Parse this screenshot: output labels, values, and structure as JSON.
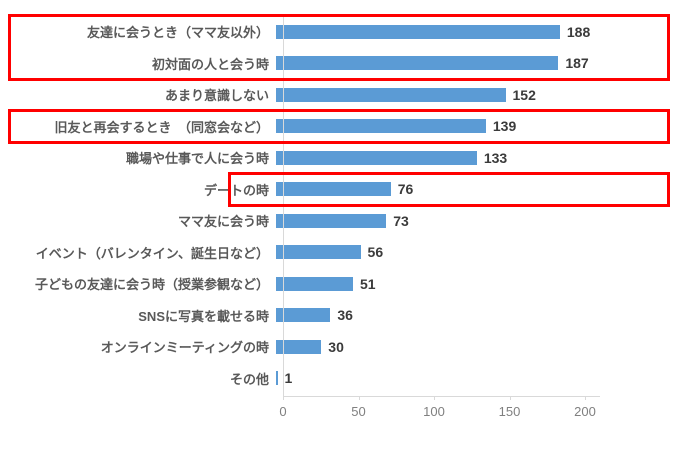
{
  "chart_data": {
    "type": "bar",
    "orientation": "horizontal",
    "title": "",
    "xlabel": "",
    "ylabel": "",
    "categories": [
      "友達に会うとき（ママ友以外）",
      "初対面の人と会う時",
      "あまり意識しない",
      "旧友と再会するとき　（同窓会など）",
      "職場や仕事で人に会う時",
      "デートの時",
      "ママ友に会う時",
      "イベント（バレンタイン、誕生日など）",
      "子どもの友達に会う時（授業参観など）",
      "SNSに写真を載せる時",
      "オンラインミーティングの時",
      "その他"
    ],
    "values": [
      188,
      187,
      152,
      139,
      133,
      76,
      73,
      56,
      51,
      36,
      30,
      1
    ],
    "xticks": [
      0,
      50,
      100,
      150,
      200
    ],
    "xlim": [
      0,
      210
    ],
    "grid": false,
    "legend": false,
    "bar_color": "#5b9bd5",
    "axis_color": "#d9d9d9",
    "tick_label_color": "#808080",
    "category_label_color": "#595959",
    "value_label_color": "#3b3b3b",
    "highlight_color": "#ff0000",
    "highlights": [
      {
        "rows": [
          0,
          1
        ],
        "full_width": true
      },
      {
        "rows": [
          3
        ],
        "full_width": true
      },
      {
        "rows": [
          5
        ],
        "full_width": false
      }
    ]
  }
}
